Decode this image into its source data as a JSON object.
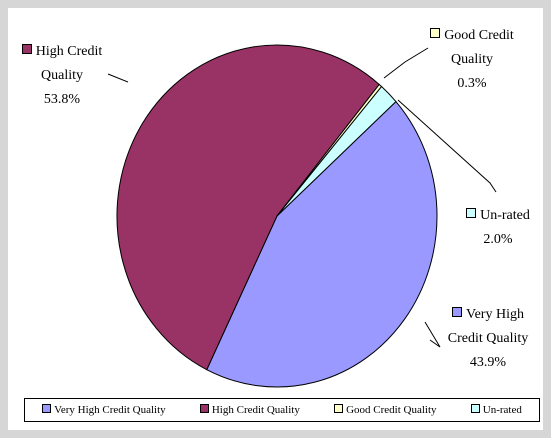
{
  "chart_data": {
    "type": "pie",
    "categories": [
      "Very High Credit Quality",
      "High Credit Quality",
      "Good Credit Quality",
      "Un-rated"
    ],
    "values": [
      43.9,
      53.8,
      0.3,
      2.0
    ],
    "value_labels": [
      "43.9%",
      "53.8%",
      "0.3%",
      "2.0%"
    ],
    "colors": [
      "#9999ff",
      "#993366",
      "#ffffcc",
      "#ccffff"
    ],
    "legend": "bottom"
  }
}
